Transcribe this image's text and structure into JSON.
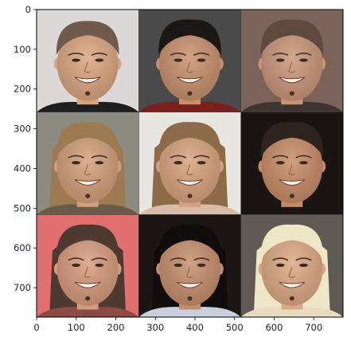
{
  "figure": {
    "description_free": true,
    "grid": "3x3",
    "axes": {
      "x_ticks": [
        "0",
        "100",
        "200",
        "300",
        "400",
        "500",
        "600",
        "700"
      ],
      "x_tick_values": [
        0,
        100,
        200,
        300,
        400,
        500,
        600,
        700
      ],
      "y_ticks": [
        "0",
        "100",
        "200",
        "300",
        "400",
        "500",
        "600",
        "700"
      ],
      "y_tick_values": [
        0,
        100,
        200,
        300,
        400,
        500,
        600,
        700
      ],
      "xlim": [
        0,
        774
      ],
      "ylim": [
        774,
        0
      ],
      "frame_color": "#000000"
    },
    "tiles": [
      {
        "row": 0,
        "col": 0,
        "bg": "#dcd8d8",
        "hair": "#6f5a4c",
        "hair_style": "buzz",
        "skin": "#d9a47e",
        "shirt": "#1e1e1e"
      },
      {
        "row": 0,
        "col": 1,
        "bg": "#4a4a4a",
        "hair": "#1b1714",
        "hair_style": "short",
        "skin": "#c88f6c",
        "shirt": "#7a1e1e"
      },
      {
        "row": 0,
        "col": 2,
        "bg": "#7b625a",
        "hair": "#5e4a3e",
        "hair_style": "short",
        "skin": "#c99578",
        "shirt": "#3e3432"
      },
      {
        "row": 1,
        "col": 0,
        "bg": "#8d8a80",
        "hair": "#9c7a52",
        "hair_style": "long",
        "skin": "#d29f7a",
        "shirt": "#6a5a48"
      },
      {
        "row": 1,
        "col": 1,
        "bg": "#e9e5e0",
        "hair": "#8d6a48",
        "hair_style": "long",
        "skin": "#d6a27c",
        "shirt": "#d8bba8"
      },
      {
        "row": 1,
        "col": 2,
        "bg": "#1a1513",
        "hair": "#2e241f",
        "hair_style": "short",
        "skin": "#c68b66",
        "shirt": "#1a1513"
      },
      {
        "row": 2,
        "col": 0,
        "bg": "#e26f6f",
        "hair": "#4e3a30",
        "hair_style": "long",
        "skin": "#d69a7c",
        "shirt": "#8e4a44"
      },
      {
        "row": 2,
        "col": 1,
        "bg": "#1b1614",
        "hair": "#0f0c0b",
        "hair_style": "long",
        "skin": "#c58d6a",
        "shirt": "#c9d0dc"
      },
      {
        "row": 2,
        "col": 2,
        "bg": "#5f5a54",
        "hair": "#efe6c8",
        "hair_style": "long",
        "skin": "#dba882",
        "shirt": "#e8dcc0"
      }
    ]
  }
}
